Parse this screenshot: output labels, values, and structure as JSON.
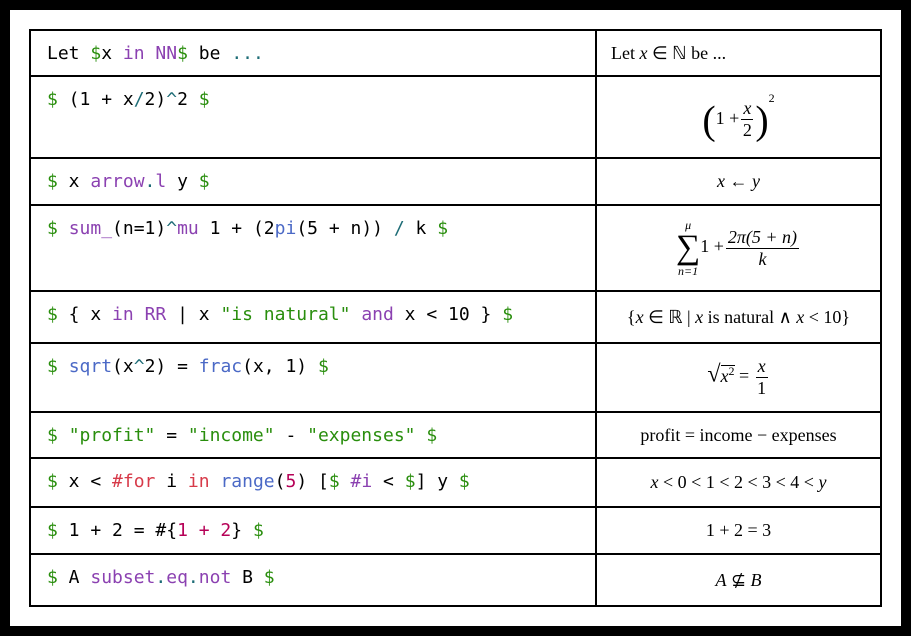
{
  "table": {
    "rows": [
      {
        "code": [
          {
            "text": "Let "
          },
          {
            "text": "$",
            "color": "#298e0d"
          },
          {
            "text": "x "
          },
          {
            "text": "in",
            "color": "#8b41b1"
          },
          {
            "text": " "
          },
          {
            "text": "NN",
            "color": "#8b41b1"
          },
          {
            "text": "$",
            "color": "#298e0d"
          },
          {
            "text": " be "
          },
          {
            "text": "...",
            "color": "#1d6c76"
          }
        ],
        "math": {
          "a": "Let",
          "b": "x",
          "c": "∈ ℕ be ..."
        }
      },
      {
        "code": [
          {
            "text": "$",
            "color": "#298e0d"
          },
          {
            "text": " (1 + x"
          },
          {
            "text": "/",
            "color": "#1d6c76"
          },
          {
            "text": "2)"
          },
          {
            "text": "^",
            "color": "#1d6c76"
          },
          {
            "text": "2 "
          },
          {
            "text": "$",
            "color": "#298e0d"
          }
        ],
        "math": {
          "open": "(",
          "lhs": "1 +",
          "num": "x",
          "den": "2",
          "close": ")",
          "exp": "2"
        }
      },
      {
        "code": [
          {
            "text": "$",
            "color": "#298e0d"
          },
          {
            "text": " x "
          },
          {
            "text": "arrow",
            "color": "#8b41b1"
          },
          {
            "text": ".",
            "color": "#1d6c76"
          },
          {
            "text": "l",
            "color": "#8b41b1"
          },
          {
            "text": " y "
          },
          {
            "text": "$",
            "color": "#298e0d"
          }
        ],
        "math": {
          "a": "x",
          "b": "←",
          "c": "y"
        }
      },
      {
        "code": [
          {
            "text": "$",
            "color": "#298e0d"
          },
          {
            "text": " "
          },
          {
            "text": "sum_",
            "color": "#8b41b1"
          },
          {
            "text": "(n=1)"
          },
          {
            "text": "^",
            "color": "#1d6c76"
          },
          {
            "text": "mu",
            "color": "#8b41b1"
          },
          {
            "text": " 1 + (2"
          },
          {
            "text": "pi",
            "color": "#4b69c6"
          },
          {
            "text": "(5 + n)) "
          },
          {
            "text": "/",
            "color": "#1d6c76"
          },
          {
            "text": " k "
          },
          {
            "text": "$",
            "color": "#298e0d"
          }
        ],
        "math": {
          "op": "∑",
          "upper": "μ",
          "lower": "n=1",
          "lhs": "1 +",
          "num": "2π(5 + n)",
          "den": "k"
        }
      },
      {
        "code": [
          {
            "text": "$",
            "color": "#298e0d"
          },
          {
            "text": " { x "
          },
          {
            "text": "in",
            "color": "#8b41b1"
          },
          {
            "text": " "
          },
          {
            "text": "RR",
            "color": "#8b41b1"
          },
          {
            "text": " | x "
          },
          {
            "text": "\"is natural\"",
            "color": "#298e0d"
          },
          {
            "text": " "
          },
          {
            "text": "and",
            "color": "#8b41b1"
          },
          {
            "text": " x < 10 } "
          },
          {
            "text": "$",
            "color": "#298e0d"
          }
        ],
        "math": {
          "a": "{",
          "b": "x",
          "c": "∈ ℝ |",
          "d": "x",
          "e": "is natural ∧",
          "f": "x",
          "g": "< 10}"
        }
      },
      {
        "code": [
          {
            "text": "$",
            "color": "#298e0d"
          },
          {
            "text": " "
          },
          {
            "text": "sqrt",
            "color": "#4b69c6"
          },
          {
            "text": "(x"
          },
          {
            "text": "^",
            "color": "#1d6c76"
          },
          {
            "text": "2) = "
          },
          {
            "text": "frac",
            "color": "#4b69c6"
          },
          {
            "text": "(x, 1) "
          },
          {
            "text": "$",
            "color": "#298e0d"
          }
        ],
        "math": {
          "radical": "√",
          "base": "x",
          "exp": "2",
          "eq": "=",
          "num": "x",
          "den": "1"
        }
      },
      {
        "code": [
          {
            "text": "$",
            "color": "#298e0d"
          },
          {
            "text": " "
          },
          {
            "text": "\"profit\"",
            "color": "#298e0d"
          },
          {
            "text": " = "
          },
          {
            "text": "\"income\"",
            "color": "#298e0d"
          },
          {
            "text": " - "
          },
          {
            "text": "\"expenses\"",
            "color": "#298e0d"
          },
          {
            "text": " "
          },
          {
            "text": "$",
            "color": "#298e0d"
          }
        ],
        "math": {
          "a": "profit = income − expenses"
        }
      },
      {
        "code": [
          {
            "text": "$",
            "color": "#298e0d"
          },
          {
            "text": " x < "
          },
          {
            "text": "#for",
            "color": "#d73a49"
          },
          {
            "text": " i "
          },
          {
            "text": "in",
            "color": "#d73a49"
          },
          {
            "text": " "
          },
          {
            "text": "range",
            "color": "#4b69c6"
          },
          {
            "text": "("
          },
          {
            "text": "5",
            "color": "#b60157"
          },
          {
            "text": ") ["
          },
          {
            "text": "$",
            "color": "#298e0d"
          },
          {
            "text": " "
          },
          {
            "text": "#i",
            "color": "#8b41b1"
          },
          {
            "text": " < "
          },
          {
            "text": "$",
            "color": "#298e0d"
          },
          {
            "text": "] y "
          },
          {
            "text": "$",
            "color": "#298e0d"
          }
        ],
        "math": {
          "a": "x",
          "b": "< 0 < 1 < 2 < 3 < 4 <",
          "c": "y"
        }
      },
      {
        "code": [
          {
            "text": "$",
            "color": "#298e0d"
          },
          {
            "text": " 1 + 2 = #{"
          },
          {
            "text": "1 + 2",
            "color": "#b60157"
          },
          {
            "text": "} "
          },
          {
            "text": "$",
            "color": "#298e0d"
          }
        ],
        "math": {
          "a": "1 + 2 = 3"
        }
      },
      {
        "code": [
          {
            "text": "$",
            "color": "#298e0d"
          },
          {
            "text": " A "
          },
          {
            "text": "subset",
            "color": "#8b41b1"
          },
          {
            "text": ".",
            "color": "#1d6c76"
          },
          {
            "text": "eq",
            "color": "#8b41b1"
          },
          {
            "text": ".",
            "color": "#1d6c76"
          },
          {
            "text": "not",
            "color": "#8b41b1"
          },
          {
            "text": " B "
          },
          {
            "text": "$",
            "color": "#298e0d"
          }
        ],
        "math": {
          "a": "A",
          "b": "⊈",
          "c": "B"
        }
      }
    ]
  }
}
